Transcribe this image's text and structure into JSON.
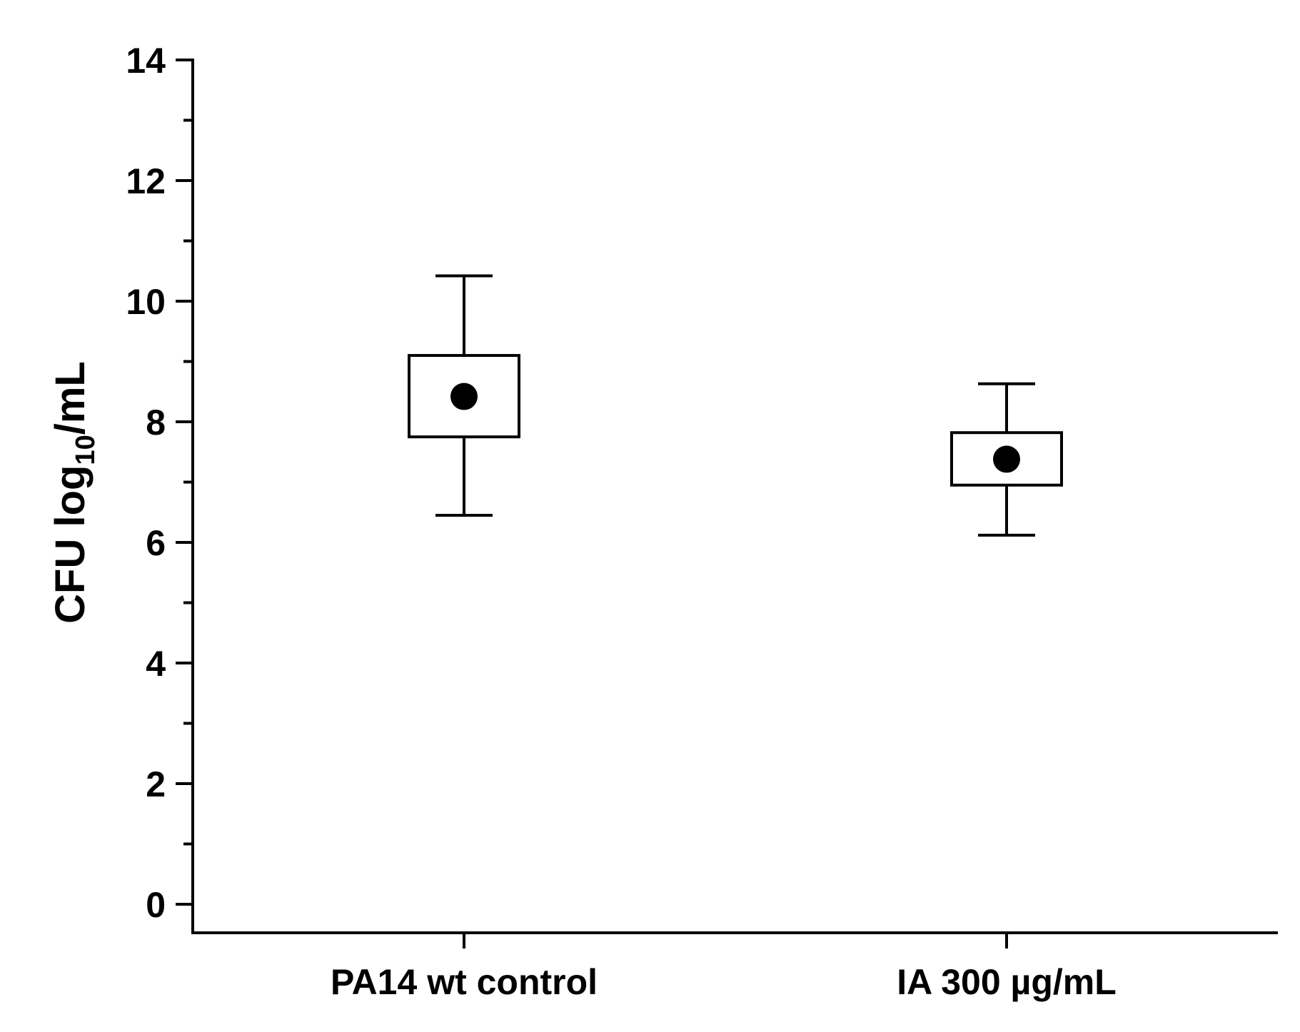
{
  "chart_data": {
    "type": "box",
    "categories": [
      "PA14 wt control",
      "IA 300 µg/mL"
    ],
    "boxes": [
      {
        "category": "PA14 wt control",
        "whisker_low": 6.45,
        "q1": 7.75,
        "q3": 9.1,
        "whisker_high": 10.42,
        "mean": 8.42
      },
      {
        "category": "IA 300 µg/mL",
        "whisker_low": 6.12,
        "q1": 6.95,
        "q3": 7.82,
        "whisker_high": 8.63,
        "mean": 7.38
      }
    ],
    "title": "",
    "xlabel": "",
    "ylabel": {
      "main": "CFU log",
      "subscript": "10",
      "suffix": "/mL"
    },
    "ylim": [
      -0.45,
      14
    ],
    "yticks": [
      0,
      2,
      4,
      6,
      8,
      10,
      12,
      14
    ],
    "ytick_labels": [
      "0",
      "2",
      "4",
      "6",
      "8",
      "10",
      "12",
      "14"
    ],
    "y_minor_step": 1,
    "grid": false,
    "legend": "none",
    "colors": {
      "axis": "#000000",
      "box_fill": "#ffffff",
      "marker": "#000000"
    }
  }
}
